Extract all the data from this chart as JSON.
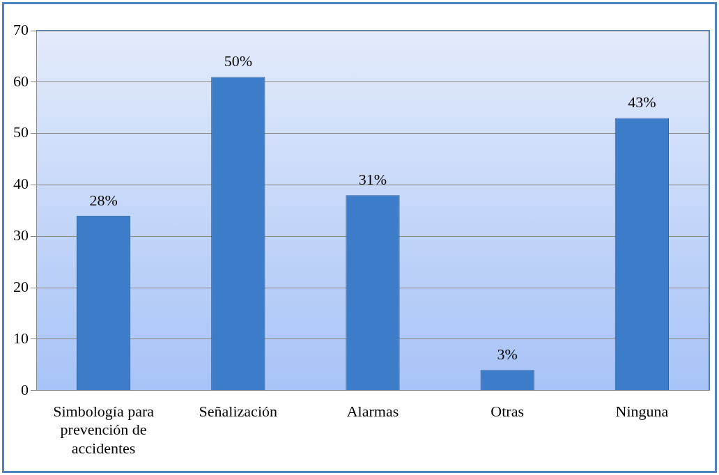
{
  "chart_data": {
    "type": "bar",
    "categories": [
      "Simbología para prevención de accidentes",
      "Señalización",
      "Alarmas",
      "Otras",
      "Ninguna"
    ],
    "values": [
      34,
      61,
      38,
      4,
      53
    ],
    "annotations": [
      {
        "text": "28%",
        "x": "Simbología para prevención de accidentes",
        "y": 34
      },
      {
        "text": "50%",
        "x": "Señalización",
        "y": 61
      },
      {
        "text": "31%",
        "x": "Alarmas",
        "y": 38
      },
      {
        "text": "3%",
        "x": "Otras",
        "y": 4
      },
      {
        "text": "43%",
        "x": "Ninguna",
        "y": 53
      }
    ],
    "color": "#3d7cc9",
    "ylim": [
      0,
      70
    ],
    "yticks": [
      0,
      10,
      20,
      30,
      40,
      50,
      60,
      70
    ],
    "grid": "y",
    "legend": false
  }
}
